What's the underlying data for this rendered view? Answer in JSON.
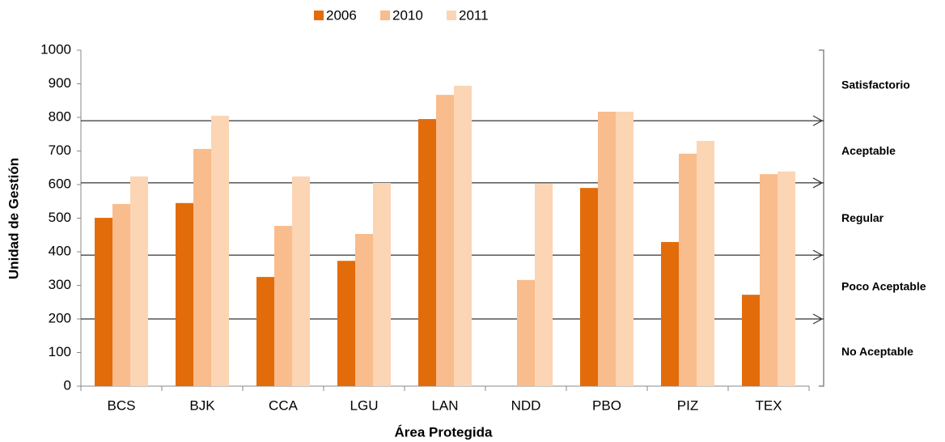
{
  "chart_data": {
    "type": "bar",
    "y_label": "Unidad de Gestión",
    "x_label": "Área Protegida",
    "categories": [
      "BCS",
      "BJK",
      "CCA",
      "LGU",
      "LAN",
      "NDD",
      "PBO",
      "PIZ",
      "TEX"
    ],
    "series": [
      {
        "name": "2006",
        "color": "#e36c0a",
        "values": [
          501,
          545,
          325,
          373,
          795,
          null,
          590,
          429,
          272
        ]
      },
      {
        "name": "2010",
        "color": "#f9bc8c",
        "values": [
          542,
          706,
          477,
          453,
          867,
          316,
          817,
          692,
          631
        ]
      },
      {
        "name": "2011",
        "color": "#fcd5b4",
        "values": [
          624,
          805,
          624,
          605,
          894,
          602,
          817,
          730,
          639
        ]
      }
    ],
    "ylim": [
      0,
      1000
    ],
    "yticks": [
      0,
      100,
      200,
      300,
      400,
      500,
      600,
      700,
      800,
      900,
      1000
    ],
    "thresholds": [
      200,
      390,
      605,
      790
    ],
    "zones": [
      "No Aceptable",
      "Poco Aceptable",
      "Regular",
      "Aceptable",
      "Satisfactorio"
    ]
  }
}
